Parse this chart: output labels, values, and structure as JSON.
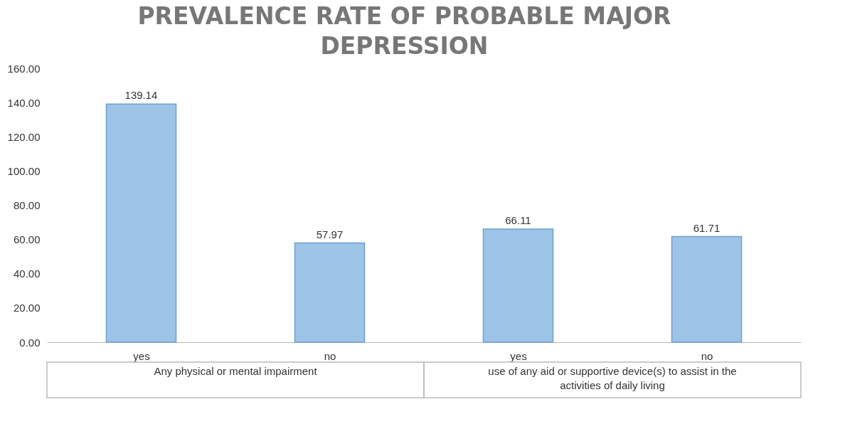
{
  "chart_data": {
    "type": "bar",
    "title": "PREVALENCE RATE OF PROBABLE MAJOR DEPRESSION",
    "categories": [
      "yes",
      "no",
      "yes",
      "no"
    ],
    "values": [
      139.14,
      57.97,
      66.11,
      61.71
    ],
    "color": "#9dc3e6",
    "data_labels": true,
    "ylim": [
      0,
      160
    ],
    "yticks": [
      {
        "value": 0,
        "label": "0.00"
      },
      {
        "value": 20,
        "label": "20.00"
      },
      {
        "value": 40,
        "label": "40.00"
      },
      {
        "value": 60,
        "label": "60.00"
      },
      {
        "value": 80,
        "label": "80.00"
      },
      {
        "value": 100,
        "label": "100.00"
      },
      {
        "value": 120,
        "label": "120.00"
      },
      {
        "value": 140,
        "label": "140.00"
      },
      {
        "value": 160,
        "label": "160.00"
      }
    ],
    "grid": false,
    "annotations": [
      "Any physical or mental impairment",
      "use of any aid or supportive device(s) to assist  in the activities of daily living"
    ]
  }
}
